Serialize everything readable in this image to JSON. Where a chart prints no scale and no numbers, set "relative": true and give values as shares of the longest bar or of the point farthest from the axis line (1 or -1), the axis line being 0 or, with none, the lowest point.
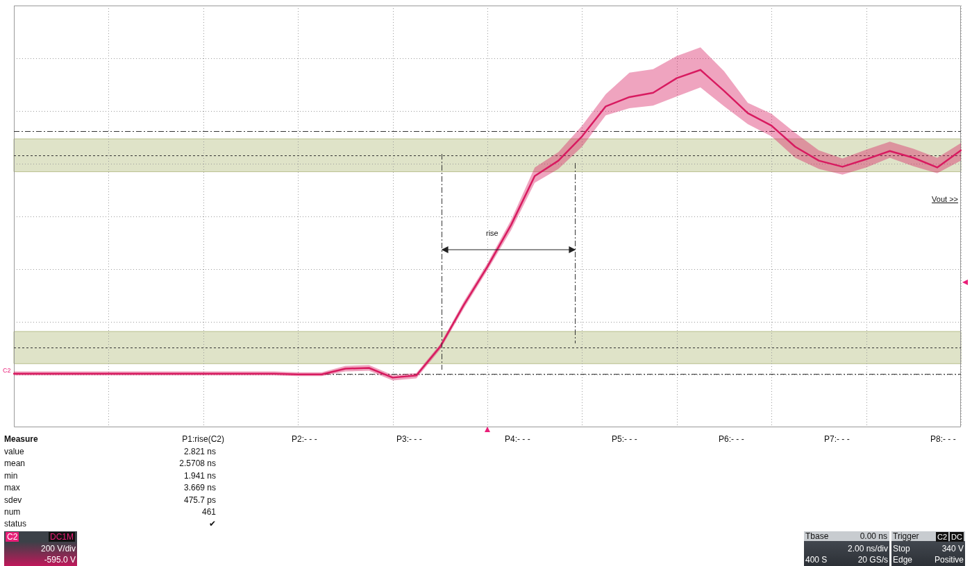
{
  "chart_data": {
    "type": "line",
    "relative": true,
    "categories": [
      null,
      null,
      null,
      null,
      null,
      null,
      null,
      null,
      null,
      null,
      null,
      null,
      null,
      null,
      null,
      null,
      null,
      null,
      null,
      null,
      null,
      null,
      null,
      null,
      null,
      null,
      null,
      null,
      null,
      null,
      null,
      null,
      null,
      null,
      null,
      null,
      null,
      null,
      null,
      null,
      null
    ],
    "series": [
      {
        "color": "#d81b60",
        "values": [
          0.15,
          0.15,
          0.15,
          0.15,
          0.15,
          0.15,
          0.15,
          0.15,
          0.15,
          0.15,
          0.15,
          0.15,
          0.148,
          0.148,
          0.164,
          0.166,
          0.139,
          0.145,
          0.225,
          0.342,
          0.449,
          0.566,
          0.703,
          0.746,
          0.814,
          0.898,
          0.924,
          0.936,
          0.977,
          1,
          0.941,
          0.879,
          0.844,
          0.785,
          0.746,
          0.729,
          0.75,
          0.773,
          0.754,
          0.727,
          0.775
        ],
        "lower": [
          0.145,
          0.145,
          0.145,
          0.145,
          0.145,
          0.145,
          0.145,
          0.145,
          0.145,
          0.145,
          0.145,
          0.145,
          0.143,
          0.143,
          0.156,
          0.158,
          0.131,
          0.137,
          0.217,
          0.332,
          0.439,
          0.551,
          0.684,
          0.723,
          0.785,
          0.873,
          0.893,
          0.9,
          0.926,
          0.951,
          0.898,
          0.848,
          0.814,
          0.754,
          0.723,
          0.707,
          0.727,
          0.754,
          0.73,
          0.711,
          0.746
        ],
        "upper": [
          0.156,
          0.156,
          0.156,
          0.156,
          0.156,
          0.156,
          0.156,
          0.156,
          0.156,
          0.156,
          0.156,
          0.156,
          0.154,
          0.154,
          0.172,
          0.174,
          0.146,
          0.152,
          0.232,
          0.352,
          0.459,
          0.58,
          0.727,
          0.77,
          0.844,
          0.932,
          0.992,
          1.002,
          1.039,
          1.063,
          0.996,
          0.908,
          0.877,
          0.824,
          0.775,
          0.752,
          0.777,
          0.799,
          0.779,
          0.754,
          0.795
        ]
      }
    ],
    "grid": true,
    "marker": "none",
    "line_style": "solid",
    "bands": [
      {
        "axis": "y",
        "from": 0.715,
        "to": 0.807,
        "color": "#dfe3c8"
      },
      {
        "axis": "y",
        "from": 0.178,
        "to": 0.268,
        "color": "#dfe3c8"
      }
    ],
    "ref_lines": [
      {
        "axis": "y",
        "value": 0.828,
        "color": "#333333",
        "line_style": "dashed"
      },
      {
        "axis": "y",
        "value": 0.76,
        "color": "#333333",
        "line_style": "dotted"
      },
      {
        "axis": "y",
        "value": 0.223,
        "color": "#333333",
        "line_style": "dotted"
      },
      {
        "axis": "y",
        "value": 0.15,
        "color": "#333333",
        "line_style": "dashed"
      }
    ],
    "annotations": [
      "Measure",
      "P1:rise(C2)",
      "P2:- - -",
      "P3:- - -",
      "P4:- - -",
      "P5:- - -",
      "P6:- - -",
      "P7:- - -",
      "P8:- - -",
      "value",
      "mean",
      "min",
      "max",
      "sdev",
      "num",
      "status",
      "2.821 ns",
      "2.5708 ns",
      "1.941 ns",
      "3.669 ns",
      "475.7 ps",
      "461",
      "✔",
      "C2",
      "DC1M",
      "200 V/div",
      "-595.0 V",
      "Tbase",
      "0.00 ns",
      "2.00 ns/div",
      "400 S",
      "20 GS/s",
      "Trigger",
      "C2",
      "DC",
      "Stop",
      "340 V",
      "Edge",
      "Positive",
      "Vout >>",
      "C2",
      "rise"
    ]
  }
}
